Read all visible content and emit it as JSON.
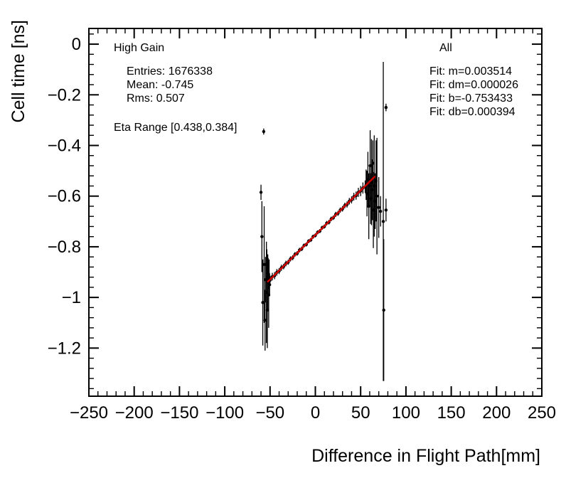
{
  "chart_data": {
    "type": "scatter",
    "title": "",
    "xlabel": "Difference in Flight Path[mm]",
    "ylabel": "Cell time [ns]",
    "xlim": [
      -250,
      250
    ],
    "ylim": [
      -1.39,
      0.062
    ],
    "grid": false,
    "x_ticks": {
      "values": [
        -250,
        -200,
        -150,
        -100,
        -50,
        0,
        50,
        100,
        150,
        200,
        250
      ],
      "labels": [
        "−250",
        "−200",
        "−150",
        "−100",
        "−50",
        "0",
        "50",
        "100",
        "150",
        "200",
        "250"
      ],
      "minor_step": 10
    },
    "y_ticks": {
      "values": [
        0,
        -0.2,
        -0.4,
        -0.6,
        -0.8,
        -1,
        -1.2
      ],
      "labels": [
        "0",
        "−0.2",
        "−0.4",
        "−0.6",
        "−0.8",
        "−1",
        "−1.2"
      ],
      "minor_step": 0.04
    },
    "fit": {
      "m": 0.003514,
      "b": -0.753433,
      "x_start": -53,
      "x_end": 66,
      "color": "#cc0000"
    },
    "marker_color": "#000000",
    "points": [
      [
        -60,
        -0.585,
        0.03
      ],
      [
        -59,
        -0.76,
        0.14
      ],
      [
        -58,
        -1.02,
        0.17
      ],
      [
        -57,
        -0.345,
        0.012
      ],
      [
        -56.5,
        -0.87,
        0.23
      ],
      [
        -55.5,
        -1.09,
        0.12
      ],
      [
        -55,
        -0.93,
        0.09
      ],
      [
        -54,
        -0.98,
        0.2
      ],
      [
        -53.5,
        -0.87,
        0.06
      ],
      [
        -53,
        -1.05,
        0.15
      ],
      [
        -52.5,
        -0.94,
        0.11
      ],
      [
        -52,
        -0.905,
        0.06
      ],
      [
        -51.5,
        -0.99,
        0.13
      ],
      [
        -51,
        -0.92,
        0.07
      ],
      [
        -50.5,
        -0.95,
        0.045
      ],
      [
        -50,
        -0.932,
        0.018
      ],
      [
        -47.5,
        -0.918,
        0.015
      ],
      [
        -45,
        -0.914,
        0.014
      ],
      [
        -42.5,
        -0.901,
        0.013
      ],
      [
        -40,
        -0.896,
        0.012
      ],
      [
        -37.5,
        -0.883,
        0.012
      ],
      [
        -35,
        -0.878,
        0.011
      ],
      [
        -32.5,
        -0.866,
        0.011
      ],
      [
        -30,
        -0.861,
        0.01
      ],
      [
        -27.5,
        -0.848,
        0.01
      ],
      [
        -25,
        -0.843,
        0.01
      ],
      [
        -22.5,
        -0.83,
        0.009
      ],
      [
        -20,
        -0.826,
        0.009
      ],
      [
        -17.5,
        -0.813,
        0.009
      ],
      [
        -15,
        -0.808,
        0.009
      ],
      [
        -12.5,
        -0.795,
        0.008
      ],
      [
        -10,
        -0.791,
        0.008
      ],
      [
        -7.5,
        -0.778,
        0.008
      ],
      [
        -5,
        -0.773,
        0.008
      ],
      [
        -2.5,
        -0.76,
        0.008
      ],
      [
        0,
        -0.755,
        0.008
      ],
      [
        2.5,
        -0.743,
        0.008
      ],
      [
        5,
        -0.738,
        0.008
      ],
      [
        7.5,
        -0.725,
        0.008
      ],
      [
        10,
        -0.72,
        0.008
      ],
      [
        12.5,
        -0.707,
        0.009
      ],
      [
        15,
        -0.703,
        0.009
      ],
      [
        17.5,
        -0.69,
        0.009
      ],
      [
        20,
        -0.685,
        0.009
      ],
      [
        22.5,
        -0.672,
        0.01
      ],
      [
        25,
        -0.668,
        0.01
      ],
      [
        27.5,
        -0.655,
        0.01
      ],
      [
        30,
        -0.65,
        0.011
      ],
      [
        32.5,
        -0.637,
        0.011
      ],
      [
        35,
        -0.633,
        0.012
      ],
      [
        37.5,
        -0.62,
        0.013
      ],
      [
        40,
        -0.615,
        0.014
      ],
      [
        42.5,
        -0.602,
        0.015
      ],
      [
        45,
        -0.598,
        0.016
      ],
      [
        47.5,
        -0.585,
        0.018
      ],
      [
        50,
        -0.58,
        0.02
      ],
      [
        52.5,
        -0.568,
        0.022
      ],
      [
        55,
        -0.563,
        0.025
      ],
      [
        56,
        -0.555,
        0.06
      ],
      [
        57,
        -0.59,
        0.09
      ],
      [
        58,
        -0.535,
        0.11
      ],
      [
        59,
        -0.64,
        0.13
      ],
      [
        60,
        -0.56,
        0.08
      ],
      [
        60.5,
        -0.48,
        0.14
      ],
      [
        61,
        -0.61,
        0.1
      ],
      [
        62,
        -0.545,
        0.17
      ],
      [
        63,
        -0.575,
        0.12
      ],
      [
        63.5,
        -0.47,
        0.09
      ],
      [
        64,
        -0.655,
        0.15
      ],
      [
        65,
        -0.56,
        0.2
      ],
      [
        66,
        -0.62,
        0.11
      ],
      [
        67,
        -0.54,
        0.16
      ],
      [
        68,
        -0.6,
        0.23
      ],
      [
        70,
        -0.645,
        0.12
      ],
      [
        72,
        -0.66,
        0.06
      ],
      [
        75,
        -0.7,
        0.63
      ],
      [
        75.5,
        -1.05,
        0.28
      ],
      [
        78,
        -0.25,
        0.015
      ],
      [
        78,
        -0.655,
        0.045
      ]
    ],
    "annotations": {
      "left": {
        "header": "High Gain",
        "lines": [
          "Entries: 1676338",
          "Mean: -0.745",
          "Rms: 0.507"
        ],
        "eta": "Eta Range [0.438,0.384]"
      },
      "right": {
        "header": "All",
        "lines": [
          "Fit: m=0.003514",
          "Fit: dm=0.000026",
          "Fit: b=-0.753433",
          "Fit: db=0.000394"
        ]
      }
    }
  }
}
